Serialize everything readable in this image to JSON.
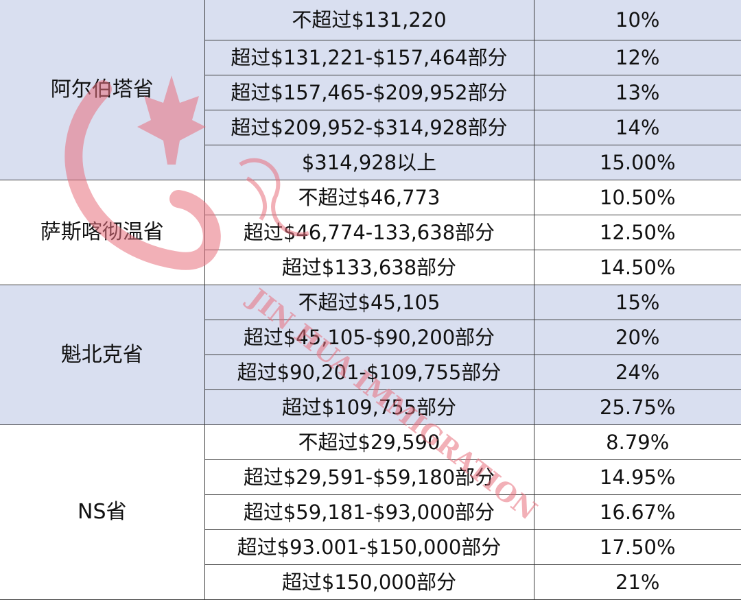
{
  "table": {
    "groups": [
      {
        "province": "阿尔伯塔省",
        "shaded": true,
        "rows": [
          {
            "range": "不超过$131,220",
            "rate": "10%"
          },
          {
            "range": "超过$131,221-$157,464部分",
            "rate": "12%"
          },
          {
            "range": "超过$157,465-$209,952部分",
            "rate": "13%"
          },
          {
            "range": "超过$209,952-$314,928部分",
            "rate": "14%"
          },
          {
            "range": "$314,928以上",
            "rate": "15.00%"
          }
        ]
      },
      {
        "province": "萨斯喀彻温省",
        "shaded": false,
        "rows": [
          {
            "range": "不超过$46,773",
            "rate": "10.50%"
          },
          {
            "range": "超过$46,774-133,638部分",
            "rate": "12.50%"
          },
          {
            "range": "超过$133,638部分",
            "rate": "14.50%"
          }
        ]
      },
      {
        "province": "魁北克省",
        "shaded": true,
        "rows": [
          {
            "range": "不超过$45,105",
            "rate": "15%"
          },
          {
            "range": "超过$45,105-$90,200部分",
            "rate": "20%"
          },
          {
            "range": "超过$90,201-$109,755部分",
            "rate": "24%"
          },
          {
            "range": "超过$109,755部分",
            "rate": "25.75%"
          }
        ]
      },
      {
        "province": "NS省",
        "shaded": false,
        "rows": [
          {
            "range": "不超过$29,590",
            "rate": "8.79%"
          },
          {
            "range": "超过$29,591-$59,180部分",
            "rate": "14.95%"
          },
          {
            "range": "超过$59,181-$93,000部分",
            "rate": "16.67%"
          },
          {
            "range": "超过$93.001-$150,000部分",
            "rate": "17.50%"
          },
          {
            "range": "超过$150,000部分",
            "rate": "21%"
          }
        ]
      }
    ]
  },
  "watermark": {
    "text": "JIN HUA IMMIGRATION",
    "color": "#e06070"
  },
  "colors": {
    "shaded_row": "#d9dff0",
    "border": "#3a3a3a"
  }
}
